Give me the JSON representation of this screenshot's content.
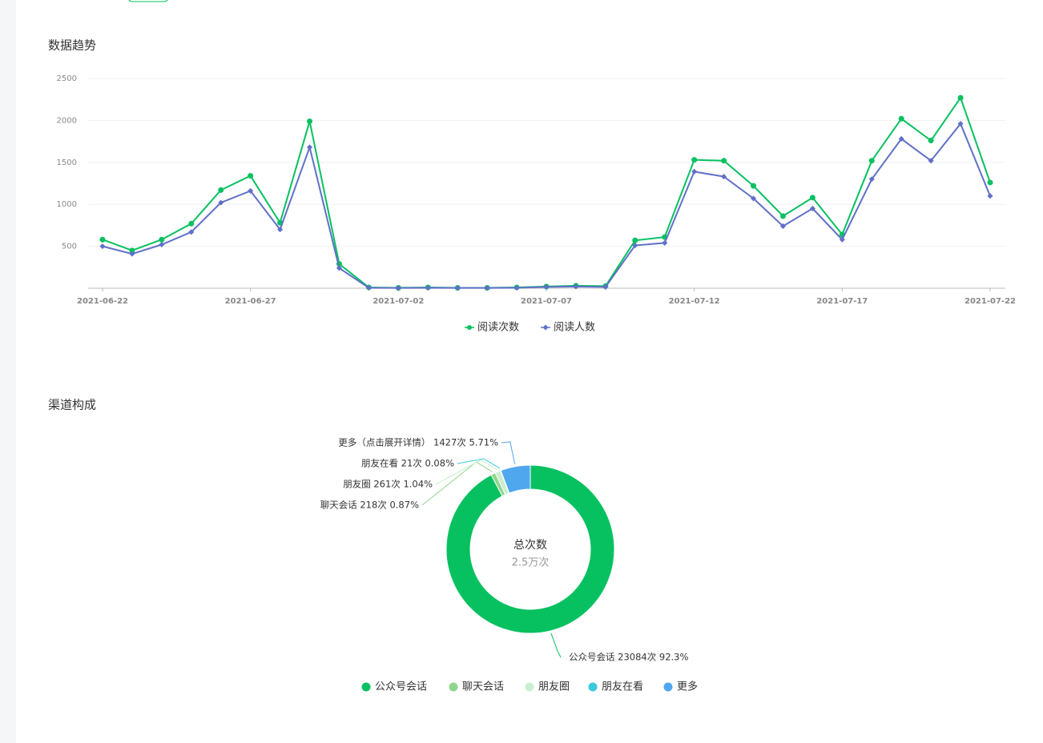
{
  "chart_data": [
    {
      "type": "line",
      "title": "数据趋势",
      "categories": [
        "2021-06-22",
        null,
        null,
        null,
        null,
        "2021-06-27",
        null,
        null,
        null,
        null,
        "2021-07-02",
        null,
        null,
        null,
        null,
        "2021-07-07",
        null,
        null,
        null,
        null,
        "2021-07-12",
        null,
        null,
        null,
        null,
        "2021-07-17",
        null,
        null,
        null,
        null,
        "2021-07-22"
      ],
      "series": [
        {
          "name": "阅读次数",
          "color": "#07c160",
          "values": [
            580,
            450,
            580,
            770,
            1170,
            1340,
            780,
            1990,
            290,
            10,
            5,
            10,
            5,
            5,
            10,
            20,
            30,
            25,
            570,
            610,
            1530,
            1520,
            1220,
            860,
            1080,
            640,
            1520,
            2020,
            1760,
            2270,
            1260
          ]
        },
        {
          "name": "阅读人数",
          "color": "#6070c8",
          "values": [
            500,
            410,
            520,
            670,
            1020,
            1160,
            700,
            1680,
            240,
            5,
            3,
            5,
            3,
            3,
            5,
            15,
            20,
            15,
            510,
            540,
            1390,
            1330,
            1070,
            740,
            950,
            580,
            1300,
            1780,
            1520,
            1960,
            1100
          ]
        }
      ],
      "ylim": [
        0,
        2500
      ],
      "yticks": [
        500,
        1000,
        1500,
        2000,
        2500
      ],
      "grid": true,
      "legend": "bottom"
    },
    {
      "type": "pie",
      "title": "渠道构成",
      "center_title": "总次数",
      "center_value": "2.5万次",
      "categories": [
        "公众号会话",
        "聊天会话",
        "朋友圈",
        "朋友在看",
        "更多"
      ],
      "values": [
        23084,
        218,
        261,
        21,
        1427
      ],
      "value_labels": [
        "公众号会话 23084次 92.3%",
        "聊天会话 218次 0.87%",
        "朋友圈 261次 1.04%",
        "朋友在看 21次 0.08%",
        "更多（点击展开详情） 1427次 5.71%"
      ],
      "colors": [
        "#07c160",
        "#91d58c",
        "#c9efd0",
        "#3ac8dc",
        "#4fa7ee"
      ],
      "legend": "bottom"
    }
  ]
}
